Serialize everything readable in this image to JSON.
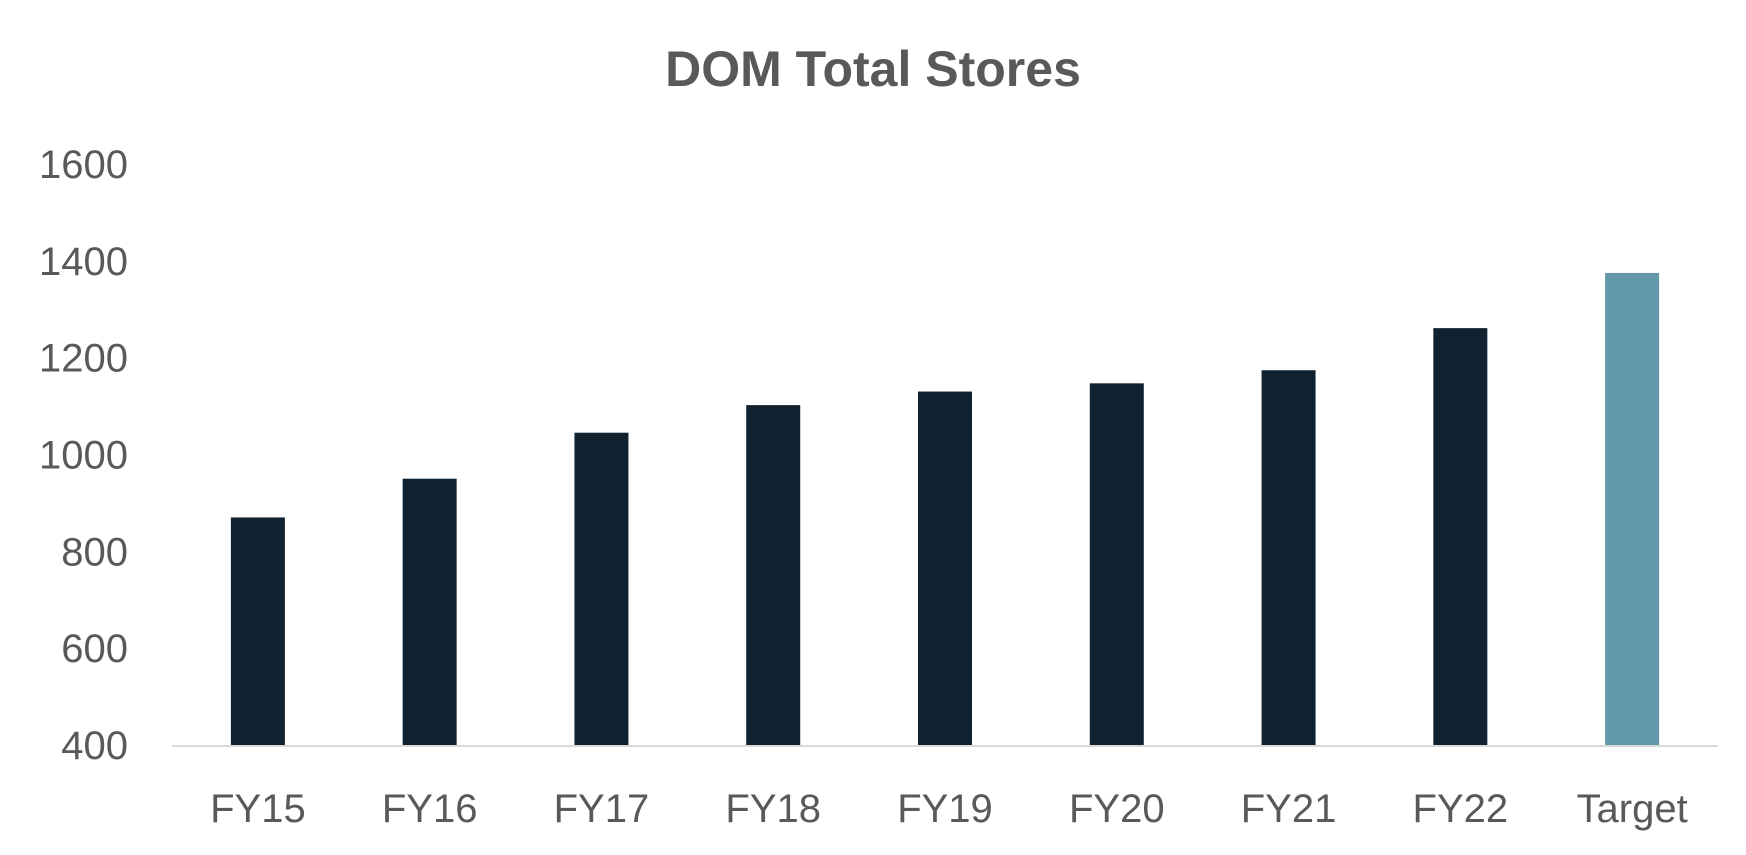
{
  "chart_data": {
    "type": "bar",
    "title": "DOM Total Stores",
    "xlabel": "",
    "ylabel": "",
    "categories": [
      "FY15",
      "FY16",
      "FY17",
      "FY18",
      "FY19",
      "FY20",
      "FY21",
      "FY22",
      "Target"
    ],
    "values": [
      870,
      950,
      1045,
      1102,
      1130,
      1147,
      1174,
      1261,
      1375
    ],
    "ylim": [
      400,
      1600
    ],
    "yticks": [
      400,
      600,
      800,
      1000,
      1200,
      1400,
      1600
    ],
    "grid": false,
    "legend": "none",
    "colors": {
      "bar": "#10212F",
      "highlight": "#6397AA",
      "axis": "#D9D9D9",
      "text": "#595959"
    },
    "highlight_index": 8
  }
}
